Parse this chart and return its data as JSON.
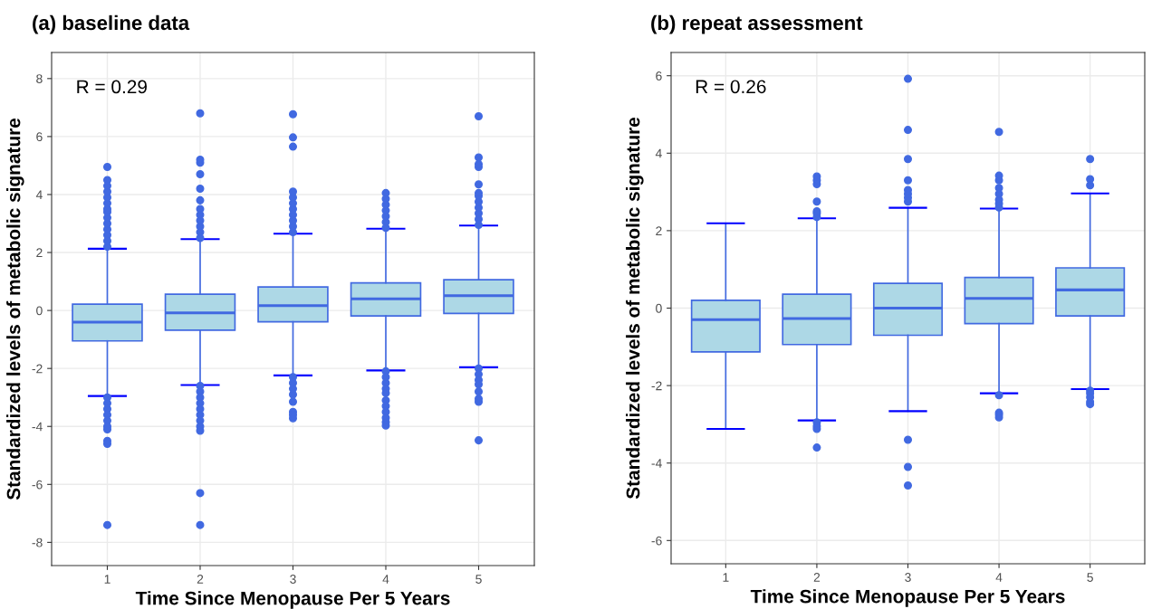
{
  "chart_data": [
    {
      "type": "box",
      "title": "(a) baseline data",
      "xlabel": "Time Since Menopause Per 5 Years",
      "ylabel": "Standardized levels of metabolic signature",
      "annotations": [
        "R = 0.29"
      ],
      "categories": [
        "1",
        "2",
        "3",
        "4",
        "5"
      ],
      "color": "#4169e1",
      "ylim": [
        -8.8,
        8.9
      ],
      "yticks": [
        -8,
        -6,
        -4,
        -2,
        0,
        2,
        4,
        6,
        8
      ],
      "grid": true,
      "boxes": [
        {
          "low": -2.95,
          "q1": -1.05,
          "median": -0.4,
          "q3": 0.22,
          "high": 2.13,
          "outliers": [
            2.2,
            2.4,
            2.6,
            2.8,
            3.0,
            3.2,
            3.4,
            3.5,
            3.7,
            3.9,
            4.1,
            4.3,
            4.5,
            4.95,
            -3.0,
            -3.2,
            -3.4,
            -3.6,
            -3.8,
            -4.0,
            -4.1,
            -4.5,
            -4.6,
            -7.4
          ]
        },
        {
          "low": -2.57,
          "q1": -0.68,
          "median": -0.08,
          "q3": 0.56,
          "high": 2.46,
          "outliers": [
            2.5,
            2.7,
            2.9,
            3.1,
            3.3,
            3.5,
            3.8,
            4.2,
            4.7,
            5.1,
            5.2,
            6.8,
            -2.6,
            -2.8,
            -3.0,
            -3.2,
            -3.4,
            -3.6,
            -3.8,
            -4.0,
            -4.15,
            -6.3,
            -7.4
          ]
        },
        {
          "low": -2.24,
          "q1": -0.39,
          "median": 0.17,
          "q3": 0.81,
          "high": 2.65,
          "outliers": [
            2.7,
            2.9,
            3.1,
            3.3,
            3.5,
            3.7,
            3.9,
            4.1,
            5.65,
            5.97,
            6.77,
            -2.3,
            -2.5,
            -2.7,
            -2.9,
            -3.15,
            -3.5,
            -3.6,
            -3.72
          ]
        },
        {
          "low": -2.07,
          "q1": -0.19,
          "median": 0.4,
          "q3": 0.95,
          "high": 2.82,
          "outliers": [
            2.85,
            3.05,
            3.25,
            3.45,
            3.65,
            3.85,
            4.05,
            -2.1,
            -2.3,
            -2.5,
            -2.7,
            -2.85,
            -3.1,
            -3.3,
            -3.5,
            -3.7,
            -3.85,
            -3.97
          ]
        },
        {
          "low": -1.96,
          "q1": -0.1,
          "median": 0.51,
          "q3": 1.06,
          "high": 2.93,
          "outliers": [
            2.95,
            3.15,
            3.35,
            3.55,
            3.75,
            3.95,
            4.05,
            4.35,
            4.95,
            5.05,
            5.28,
            6.7,
            -2.0,
            -2.2,
            -2.4,
            -2.55,
            -2.8,
            -3.05,
            -3.15,
            -4.48
          ]
        }
      ]
    },
    {
      "type": "box",
      "title": "(b) repeat assessment",
      "xlabel": "Time Since Menopause Per 5 Years",
      "ylabel": "Standardized levels of metabolic signature",
      "annotations": [
        "R = 0.26"
      ],
      "categories": [
        "1",
        "2",
        "3",
        "4",
        "5"
      ],
      "color": "#4169e1",
      "ylim": [
        -6.6,
        6.6
      ],
      "yticks": [
        -6,
        -4,
        -2,
        0,
        2,
        4,
        6
      ],
      "grid": true,
      "boxes": [
        {
          "low": -3.12,
          "q1": -1.13,
          "median": -0.3,
          "q3": 0.2,
          "high": 2.19
        },
        {
          "low": -2.9,
          "q1": -0.94,
          "median": -0.27,
          "q3": 0.36,
          "high": 2.32,
          "outliers": [
            2.35,
            2.45,
            2.5,
            2.75,
            3.2,
            3.3,
            3.4,
            -2.95,
            -3.05,
            -3.12,
            -3.6
          ]
        },
        {
          "low": -2.66,
          "q1": -0.7,
          "median": 0.0,
          "q3": 0.64,
          "high": 2.59,
          "outliers": [
            2.75,
            2.85,
            2.95,
            3.05,
            3.3,
            3.85,
            4.6,
            5.92,
            -3.4,
            -4.1,
            -4.58
          ]
        },
        {
          "low": -2.2,
          "q1": -0.4,
          "median": 0.25,
          "q3": 0.79,
          "high": 2.57,
          "outliers": [
            2.6,
            2.7,
            2.8,
            2.95,
            3.1,
            3.3,
            3.42,
            4.55,
            -2.25,
            -2.7,
            -2.75,
            -2.82
          ]
        },
        {
          "low": -2.09,
          "q1": -0.2,
          "median": 0.47,
          "q3": 1.04,
          "high": 2.96,
          "outliers": [
            3.17,
            3.33,
            3.85,
            -2.13,
            -2.2,
            -2.3,
            -2.42,
            -2.48
          ]
        }
      ]
    }
  ]
}
